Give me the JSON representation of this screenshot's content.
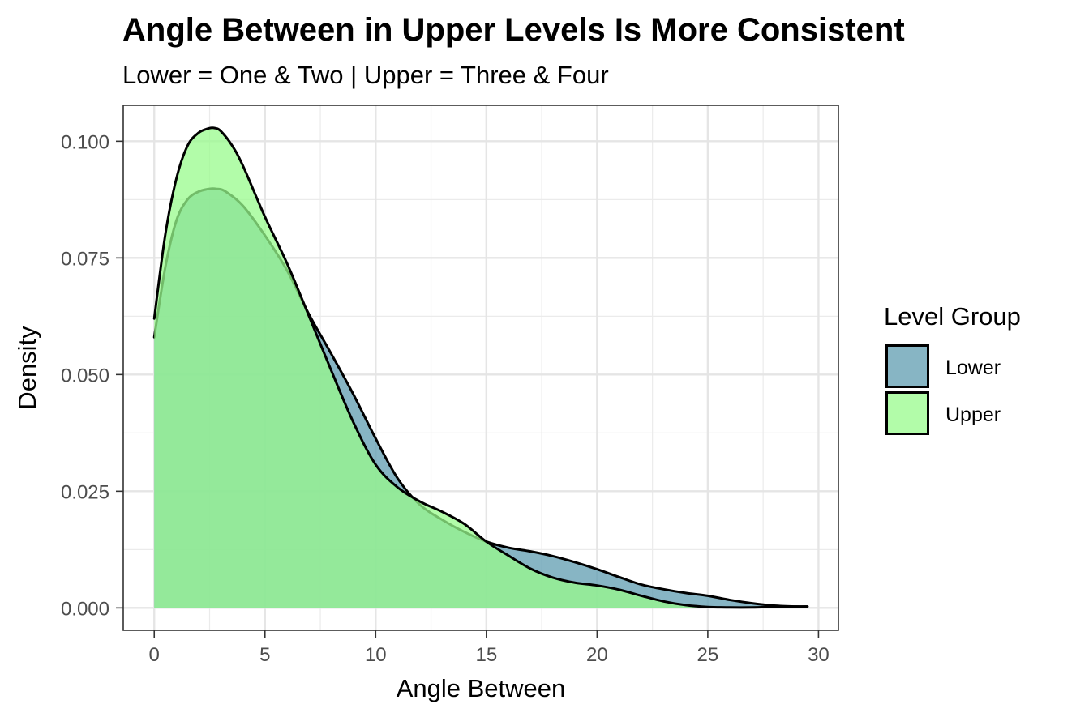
{
  "chart_data": {
    "type": "area",
    "title": "Angle Between in Upper Levels Is More Consistent",
    "subtitle": "Lower = One & Two | Upper = Three & Four",
    "xlabel": "Angle Between",
    "ylabel": "Density",
    "xlim": [
      -1.4,
      30.9
    ],
    "ylim": [
      -0.0048,
      0.1077
    ],
    "x_ticks": [
      0,
      5,
      10,
      15,
      20,
      25,
      30
    ],
    "y_ticks": [
      0.0,
      0.025,
      0.05,
      0.075,
      0.1
    ],
    "x_tick_labels": [
      "0",
      "5",
      "10",
      "15",
      "20",
      "25",
      "30"
    ],
    "y_tick_labels": [
      "0.000",
      "0.025",
      "0.050",
      "0.075",
      "0.100"
    ],
    "grid": true,
    "legend": {
      "title": "Level Group",
      "position": "right",
      "entries": [
        "Lower",
        "Upper"
      ]
    },
    "series": [
      {
        "name": "Lower",
        "color": "#5f9cb0",
        "x": [
          0,
          0.5,
          1,
          1.5,
          2,
          2.5,
          2.8,
          3.2,
          4,
          5,
          6,
          7,
          8,
          9,
          10,
          11,
          12,
          13,
          14,
          15,
          16,
          17,
          18,
          19,
          20,
          21,
          22,
          23,
          24,
          25,
          26,
          27,
          28,
          29,
          29.5
        ],
        "y": [
          0.058,
          0.073,
          0.083,
          0.0875,
          0.0892,
          0.0898,
          0.0898,
          0.0893,
          0.0862,
          0.0798,
          0.0723,
          0.0628,
          0.0544,
          0.0457,
          0.0363,
          0.0277,
          0.0221,
          0.0189,
          0.0163,
          0.0142,
          0.0129,
          0.0121,
          0.0111,
          0.0098,
          0.0083,
          0.0066,
          0.005,
          0.004,
          0.0032,
          0.0026,
          0.0017,
          0.001,
          0.0005,
          0.0003,
          0.0003
        ]
      },
      {
        "name": "Upper",
        "color": "#98fb8c",
        "x": [
          0,
          0.5,
          1,
          1.5,
          2,
          2.5,
          2.75,
          3,
          3.5,
          4,
          5,
          6,
          7,
          8,
          9,
          10,
          11,
          12,
          13,
          14,
          15,
          16,
          17,
          18,
          19,
          20,
          21,
          22,
          23,
          24,
          25,
          26,
          27,
          28,
          29,
          29.5
        ],
        "y": [
          0.062,
          0.08,
          0.092,
          0.099,
          0.1018,
          0.1028,
          0.1028,
          0.1022,
          0.0992,
          0.0948,
          0.0838,
          0.0738,
          0.0624,
          0.0508,
          0.0397,
          0.0307,
          0.0258,
          0.0228,
          0.0206,
          0.018,
          0.0142,
          0.0112,
          0.0084,
          0.0065,
          0.0054,
          0.0048,
          0.0039,
          0.0026,
          0.0014,
          0.0006,
          0.0002,
          0.0001,
          0.0001,
          0.0002,
          0.0003,
          0.0003
        ]
      }
    ]
  }
}
